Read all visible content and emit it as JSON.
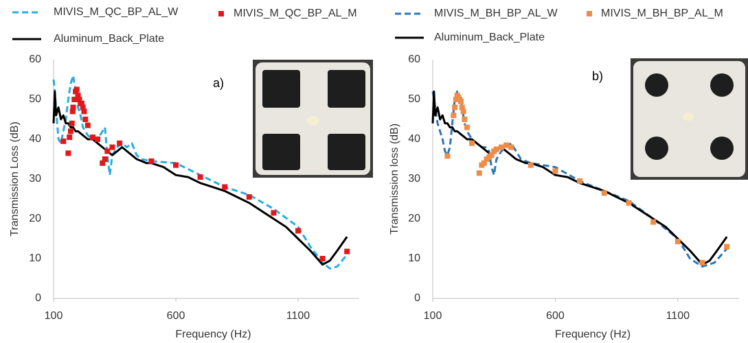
{
  "chart_data": [
    {
      "type": "line",
      "annotation": "a)",
      "xlabel": "Frequency (Hz)",
      "ylabel": "Transmission Loss (dB)",
      "xlim": [
        100,
        1350
      ],
      "xticks": [
        100,
        600,
        1100
      ],
      "ylim": [
        0,
        60
      ],
      "yticks": [
        0,
        10,
        20,
        30,
        40,
        50,
        60
      ],
      "grid": false,
      "series": [
        {
          "name": "MIVIS_M_QC_BP_AL_W",
          "color": "#29abe2",
          "style": "dashed",
          "x": [
            100,
            105,
            110,
            115,
            120,
            130,
            140,
            150,
            160,
            170,
            180,
            190,
            200,
            210,
            220,
            230,
            240,
            260,
            280,
            300,
            310,
            320,
            330,
            340,
            350,
            360,
            380,
            400,
            420,
            440,
            460,
            500,
            600,
            700,
            800,
            900,
            1000,
            1100,
            1150,
            1200,
            1230,
            1260,
            1300
          ],
          "values": [
            55,
            52,
            48,
            44,
            40,
            39,
            42,
            45,
            50,
            54,
            56,
            52,
            48,
            46,
            43,
            42,
            41,
            40,
            40,
            42,
            43,
            36,
            31,
            36,
            37,
            38,
            39,
            38,
            39,
            36,
            35,
            34.5,
            34,
            31,
            28,
            26,
            22.5,
            18,
            13,
            9,
            7.5,
            8,
            11
          ]
        },
        {
          "name": "MIVIS_M_QC_BP_AL_M",
          "color": "#e3181d",
          "style": "markers",
          "x": [
            140,
            160,
            165,
            170,
            175,
            178,
            180,
            185,
            190,
            195,
            200,
            205,
            210,
            215,
            220,
            225,
            230,
            240,
            260,
            280,
            300,
            310,
            320,
            340,
            370,
            500,
            600,
            700,
            800,
            900,
            1000,
            1100,
            1200,
            1300
          ],
          "values": [
            39.5,
            36.5,
            40.5,
            42,
            44,
            47,
            48,
            50,
            52,
            52.5,
            51,
            50,
            49,
            49,
            48,
            47,
            45,
            43.5,
            40.5,
            40,
            34,
            35,
            37,
            38,
            39,
            34.5,
            33.5,
            30.5,
            28,
            25.5,
            21.5,
            17,
            10,
            11.8
          ]
        },
        {
          "name": "Aluminum_Back_Plate",
          "color": "#000000",
          "style": "solid",
          "x": [
            100,
            105,
            110,
            120,
            130,
            140,
            150,
            160,
            170,
            180,
            190,
            200,
            220,
            240,
            260,
            280,
            300,
            320,
            340,
            360,
            380,
            400,
            420,
            440,
            460,
            480,
            500,
            550,
            600,
            650,
            700,
            750,
            800,
            850,
            900,
            950,
            1000,
            1050,
            1100,
            1150,
            1200,
            1230,
            1260,
            1300
          ],
          "values": [
            44,
            52,
            46,
            48,
            45,
            46,
            44,
            44,
            43,
            43,
            42,
            42,
            41,
            40,
            40,
            39,
            38,
            37,
            36,
            37,
            38,
            37,
            36,
            35,
            34.5,
            34,
            34,
            33,
            31,
            30.5,
            29,
            28,
            27,
            25.5,
            24,
            22,
            20,
            18,
            15,
            12,
            8.5,
            9.5,
            12,
            15.5
          ]
        }
      ]
    },
    {
      "type": "line",
      "annotation": "b)",
      "xlabel": "Frequency (Hz)",
      "ylabel": "Transmission loss (dB)",
      "xlim": [
        100,
        1350
      ],
      "xticks": [
        100,
        600,
        1100
      ],
      "ylim": [
        0,
        60
      ],
      "yticks": [
        0,
        10,
        20,
        30,
        40,
        50,
        60
      ],
      "grid": false,
      "series": [
        {
          "name": "MIVIS_M_BH_BP_AL_W",
          "color": "#2e75b6",
          "style": "dashed",
          "x": [
            100,
            110,
            120,
            130,
            140,
            150,
            160,
            170,
            180,
            190,
            200,
            210,
            220,
            230,
            240,
            250,
            260,
            280,
            300,
            320,
            330,
            340,
            350,
            360,
            380,
            400,
            420,
            440,
            460,
            500,
            600,
            700,
            800,
            900,
            1000,
            1100,
            1150,
            1200,
            1250,
            1300
          ],
          "values": [
            52,
            48,
            44,
            42,
            40,
            37,
            36,
            38,
            44,
            50,
            52,
            51,
            48,
            44,
            42,
            41,
            40,
            39,
            38,
            38,
            37,
            33,
            31,
            35,
            37,
            38,
            39,
            37,
            35,
            34,
            33,
            29.5,
            27,
            24.5,
            20,
            15,
            10,
            8,
            9,
            12.5
          ]
        },
        {
          "name": "MIVIS_M_BH_BP_AL_M",
          "color": "#ed8d4a",
          "style": "markers",
          "x": [
            160,
            185,
            190,
            195,
            200,
            205,
            210,
            215,
            220,
            225,
            230,
            240,
            260,
            290,
            300,
            310,
            320,
            330,
            340,
            350,
            360,
            380,
            400,
            420,
            500,
            600,
            700,
            800,
            900,
            1000,
            1100,
            1200,
            1300
          ],
          "values": [
            35.8,
            46,
            48,
            50,
            51,
            50.5,
            50,
            49.5,
            48,
            47,
            45,
            43,
            39,
            31.5,
            33.5,
            34,
            35,
            35.5,
            36,
            37,
            37.5,
            38,
            38.5,
            38,
            33.5,
            32,
            29.5,
            26.5,
            24,
            19.2,
            14.3,
            9,
            13
          ]
        },
        {
          "name": "Aluminum_Back_Plate",
          "color": "#000000",
          "style": "solid",
          "x": [
            100,
            105,
            110,
            120,
            130,
            140,
            150,
            160,
            170,
            180,
            190,
            200,
            220,
            240,
            260,
            280,
            300,
            320,
            340,
            360,
            380,
            400,
            420,
            440,
            460,
            480,
            500,
            550,
            600,
            650,
            700,
            750,
            800,
            850,
            900,
            950,
            1000,
            1050,
            1100,
            1150,
            1200,
            1230,
            1260,
            1300
          ],
          "values": [
            44,
            52,
            46,
            48,
            45,
            46,
            44,
            44,
            43,
            43,
            42,
            42,
            41,
            40,
            40,
            39,
            38,
            37,
            36,
            37,
            38,
            37,
            36,
            35,
            34.5,
            34,
            34,
            33,
            31,
            30.5,
            29,
            28,
            27,
            25.5,
            24,
            22,
            20,
            18,
            15,
            12,
            8.5,
            9.5,
            12,
            15.5
          ]
        }
      ]
    }
  ]
}
